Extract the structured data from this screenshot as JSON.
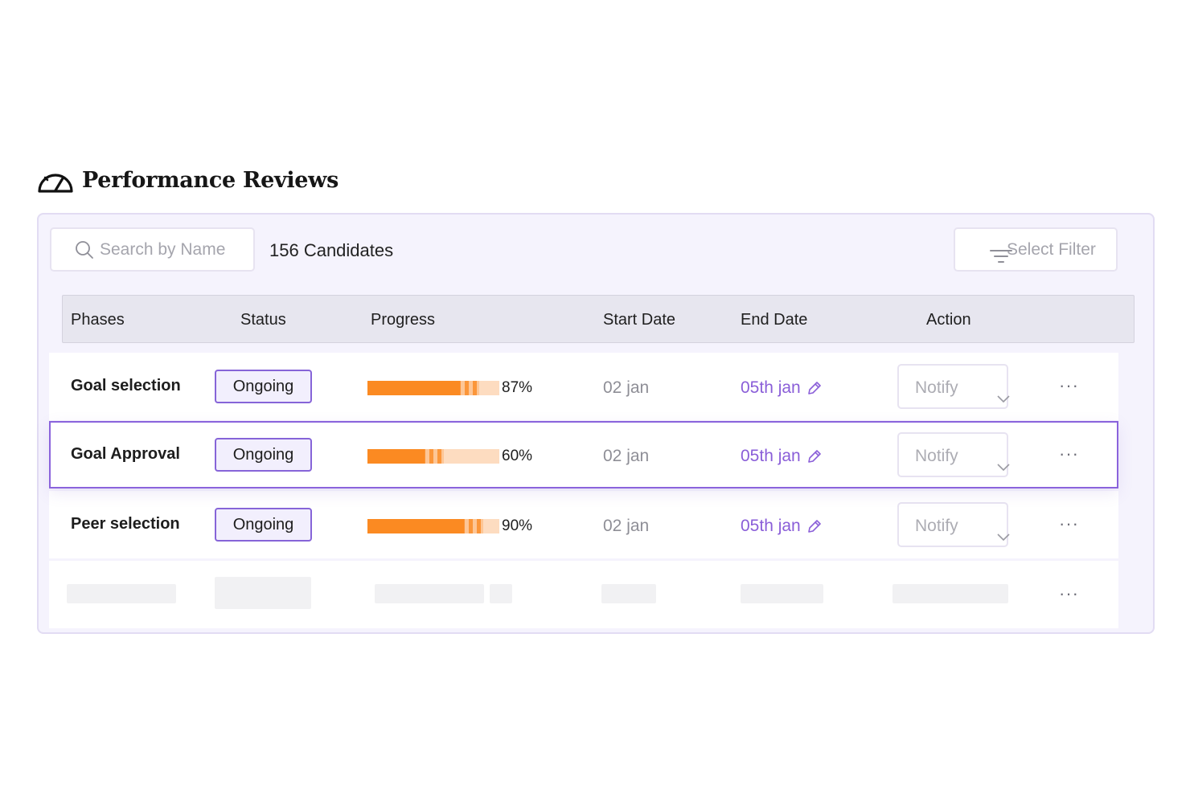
{
  "page": {
    "title": "Performance Reviews",
    "title_icon": "speedometer-icon"
  },
  "toolbar": {
    "search_placeholder": "Search by Name",
    "search_icon": "search-icon",
    "candidate_count": "156 Candidates",
    "filter_label": "Select Filter",
    "filter_icon": "filter-icon"
  },
  "table": {
    "columns": [
      "Phases",
      "Status",
      "Progress",
      "Start Date",
      "End Date",
      "Action"
    ],
    "rows": [
      {
        "phase": "Goal selection",
        "status": "Ongoing",
        "progress": 87,
        "progress_label": "87%",
        "start": "02 jan",
        "end": "05th jan",
        "action": "Notify",
        "more": "···"
      },
      {
        "phase": "Goal Approval",
        "status": "Ongoing",
        "progress": 60,
        "progress_label": "60%",
        "start": "02 jan",
        "end": "05th jan",
        "action": "Notify",
        "more": "···"
      },
      {
        "phase": "Peer selection",
        "status": "Ongoing",
        "progress": 90,
        "progress_label": "90%",
        "start": "02 jan",
        "end": "05th jan",
        "action": "Notify",
        "more": "···"
      }
    ],
    "loading_row_more": "···"
  },
  "colors": {
    "accent": "#8a5ed8",
    "progress_fill": "#fb8a22",
    "progress_track": "#fddcc0",
    "panel_bg": "#f5f3fd"
  }
}
